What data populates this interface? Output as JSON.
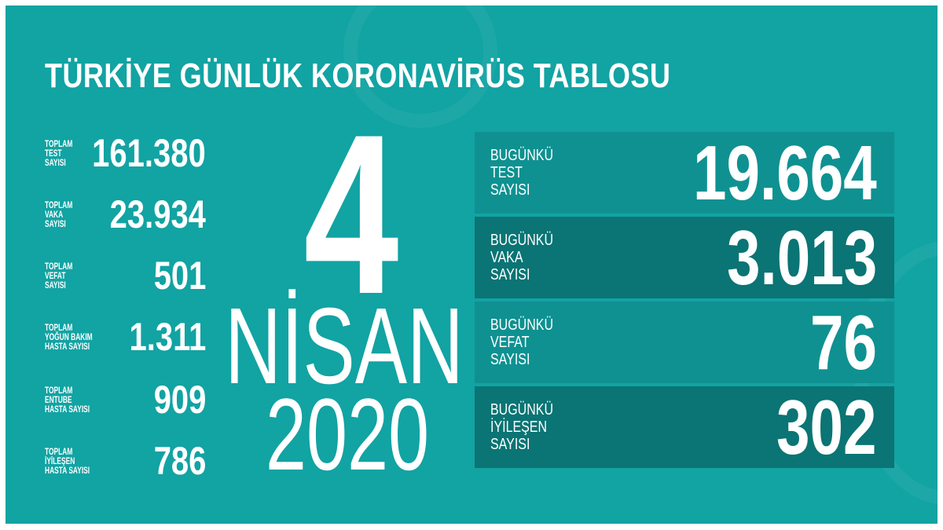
{
  "title": "TÜRKİYE GÜNLÜK KORONAVİRÜS TABLOSU",
  "colors": {
    "background": "#12a3a3",
    "panel_light": "#0f9191",
    "panel_dark": "#0b7474",
    "text": "#ffffff"
  },
  "date": {
    "day": "4",
    "month": "NİSAN",
    "year": "2020"
  },
  "totals": [
    {
      "label": [
        "TOPLAM",
        "TEST",
        "SAYISI"
      ],
      "value": "161.380"
    },
    {
      "label": [
        "TOPLAM",
        "VAKA",
        "SAYISI"
      ],
      "value": "23.934"
    },
    {
      "label": [
        "TOPLAM",
        "VEFAT",
        "SAYISI"
      ],
      "value": "501"
    },
    {
      "label": [
        "TOPLAM",
        "YOĞUN BAKIM",
        "HASTA SAYISI"
      ],
      "value": "1.311"
    },
    {
      "label": [
        "TOPLAM",
        "ENTUBE",
        "HASTA SAYISI"
      ],
      "value": "909"
    },
    {
      "label": [
        "TOPLAM",
        "İYİLEŞEN",
        "HASTA SAYISI"
      ],
      "value": "786"
    }
  ],
  "today": [
    {
      "label": [
        "BUGÜNKÜ",
        "TEST",
        "SAYISI"
      ],
      "value": "19.664"
    },
    {
      "label": [
        "BUGÜNKÜ",
        "VAKA",
        "SAYISI"
      ],
      "value": "3.013"
    },
    {
      "label": [
        "BUGÜNKÜ",
        "VEFAT",
        "SAYISI"
      ],
      "value": "76"
    },
    {
      "label": [
        "BUGÜNKÜ",
        "İYİLEŞEN",
        "SAYISI"
      ],
      "value": "302"
    }
  ]
}
